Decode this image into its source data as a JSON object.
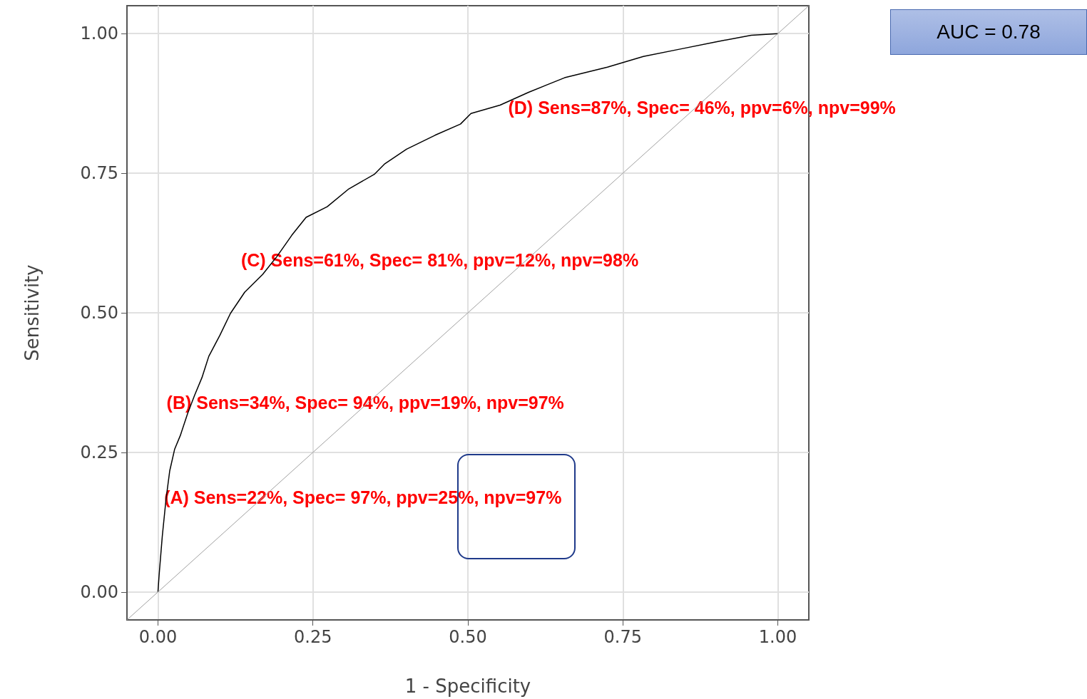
{
  "chart_data": {
    "type": "line",
    "xlabel": "1 - Specificity",
    "ylabel": "Sensitivity",
    "xlim": [
      -0.05,
      1.05
    ],
    "ylim": [
      -0.05,
      1.05
    ],
    "xticks": [
      {
        "value": 0,
        "label": "0.00"
      },
      {
        "value": 0.25,
        "label": "0.25"
      },
      {
        "value": 0.5,
        "label": "0.50"
      },
      {
        "value": 0.75,
        "label": "0.75"
      },
      {
        "value": 1,
        "label": "1.00"
      }
    ],
    "yticks": [
      {
        "value": 0,
        "label": "0.00"
      },
      {
        "value": 0.25,
        "label": "0.25"
      },
      {
        "value": 0.5,
        "label": "0.50"
      },
      {
        "value": 0.75,
        "label": "0.75"
      },
      {
        "value": 1,
        "label": "1.00"
      }
    ],
    "grid": true,
    "marker": "none",
    "series": [
      {
        "color": "#000000",
        "x": [
          0,
          0.002,
          0.007,
          0.013,
          0.019,
          0.027,
          0.036,
          0.048,
          0.059,
          0.071,
          0.082,
          0.1,
          0.117,
          0.14,
          0.169,
          0.192,
          0.216,
          0.239,
          0.273,
          0.308,
          0.349,
          0.366,
          0.401,
          0.447,
          0.488,
          0.505,
          0.552,
          0.598,
          0.656,
          0.725,
          0.783,
          0.841,
          0.899,
          0.957,
          1
        ],
        "values": [
          0,
          0.032,
          0.1,
          0.166,
          0.217,
          0.256,
          0.28,
          0.32,
          0.352,
          0.384,
          0.422,
          0.46,
          0.499,
          0.537,
          0.569,
          0.601,
          0.639,
          0.671,
          0.69,
          0.722,
          0.748,
          0.767,
          0.793,
          0.818,
          0.838,
          0.857,
          0.872,
          0.895,
          0.921,
          0.94,
          0.959,
          0.972,
          0.985,
          0.997,
          1
        ]
      },
      {
        "color": "#a0a0a0",
        "x": [
          -0.05,
          1.05
        ],
        "values": [
          -0.05,
          1.05
        ]
      }
    ],
    "annotations": [
      "(A) Sens=22%, Spec= 97%, ppv=25%, npv=97%",
      "(B) Sens=34%, Spec= 94%, ppv=19%, npv=97%",
      "(C) Sens=61%, Spec= 81%, ppv=12%, npv=98%",
      "(D) Sens=87%, Spec= 46%, ppv=6%, npv=99%",
      "AUC = 0.78"
    ]
  }
}
